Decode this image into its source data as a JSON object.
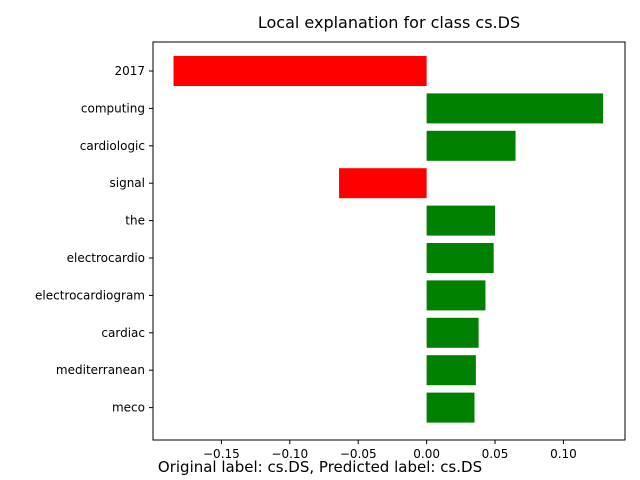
{
  "chart_data": {
    "type": "bar",
    "orientation": "horizontal",
    "title": "Local explanation for class cs.DS",
    "categories": [
      "2017",
      "computing",
      "cardiologic",
      "signal",
      "the",
      "electrocardio",
      "electrocardiogram",
      "cardiac",
      "mediterranean",
      "meco"
    ],
    "values": [
      -0.185,
      0.129,
      0.065,
      -0.064,
      0.05,
      0.049,
      0.043,
      0.038,
      0.036,
      0.035
    ],
    "positive_color": "#008000",
    "negative_color": "#ff0000",
    "xlim": [
      -0.2,
      0.145
    ],
    "xticks": [
      -0.15,
      -0.1,
      -0.05,
      0.0,
      0.05,
      0.1
    ],
    "xtick_labels": [
      "−0.15",
      "−0.10",
      "−0.05",
      "0.00",
      "0.05",
      "0.10"
    ],
    "grid": false
  },
  "caption": "Original label: cs.DS, Predicted label: cs.DS"
}
